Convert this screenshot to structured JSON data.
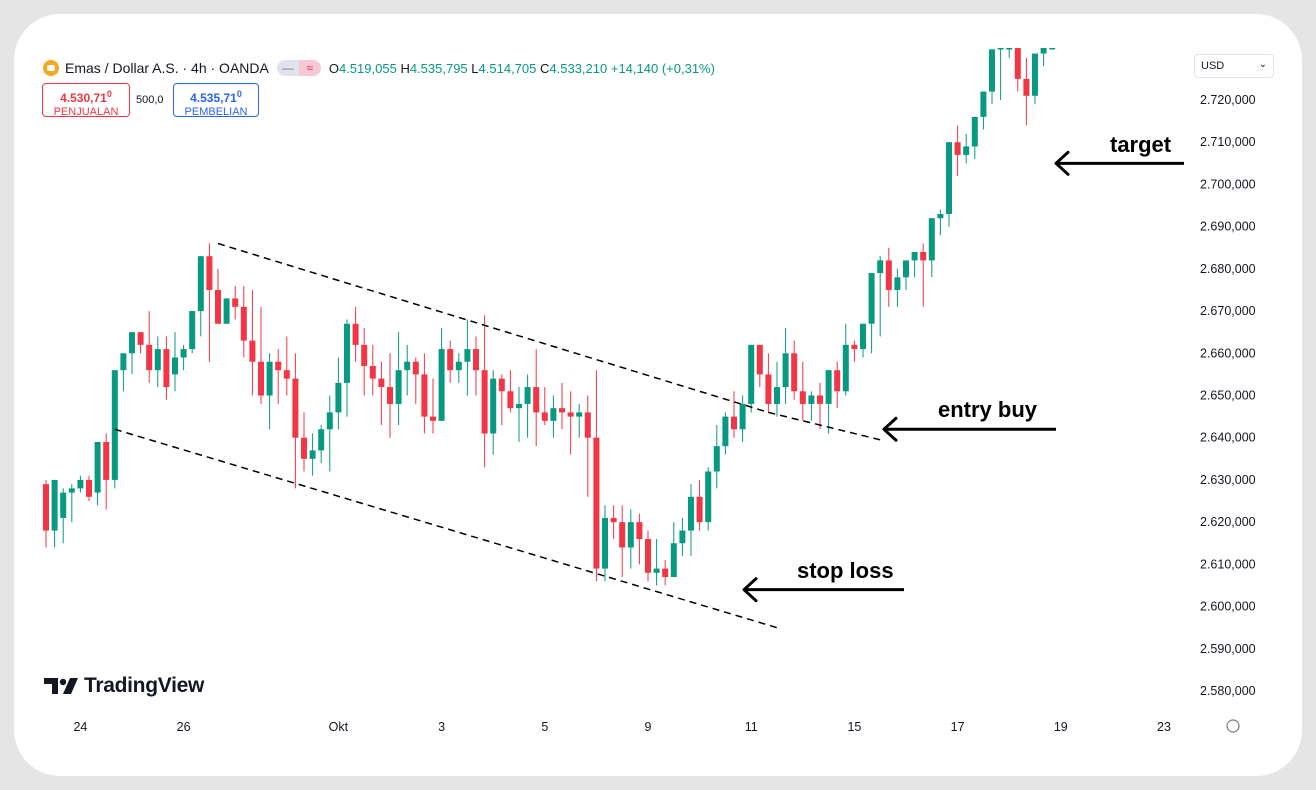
{
  "header": {
    "symbol": "Emas / Dollar A.S. · 4h · OANDA",
    "ohlc": {
      "o_label": "O",
      "o": "4.519,055",
      "h_label": "H",
      "h": "4.535,795",
      "l_label": "L",
      "l": "4.514,705",
      "c_label": "C",
      "c": "4.533,210",
      "change": "+14,140 (+0,31%)"
    },
    "pill_a": "—",
    "pill_b": "≈",
    "sell": {
      "price": "4.530,71",
      "price_sup": "0",
      "label": "PENJUALAN"
    },
    "spread": "500,0",
    "buy": {
      "price": "4.535,71",
      "price_sup": "0",
      "label": "PEMBELIAN"
    },
    "currency": "USD",
    "currency_chevron": "⌄"
  },
  "logo": {
    "text": "TradingView"
  },
  "colors": {
    "up": "#089981",
    "down": "#f23645",
    "grid": "#ffffff",
    "text": "#131722"
  },
  "chart_data": {
    "type": "candlestick",
    "title": "",
    "y_axis": {
      "min": 2572000,
      "max": 2734000,
      "ticks": [
        2720000,
        2710000,
        2700000,
        2690000,
        2680000,
        2670000,
        2660000,
        2650000,
        2640000,
        2630000,
        2620000,
        2610000,
        2600000,
        2590000,
        2580000
      ],
      "tick_labels": [
        "2.720,000",
        "2.710,000",
        "2.700,000",
        "2.690,000",
        "2.680,000",
        "2.670,000",
        "2.660,000",
        "2.650,000",
        "2.640,000",
        "2.630,000",
        "2.620,000",
        "2.610,000",
        "2.600,000",
        "2.590,000",
        "2.580,000"
      ]
    },
    "x_axis": {
      "tick_labels": [
        "24",
        "26",
        "Okt",
        "3",
        "5",
        "9",
        "11",
        "15",
        "17",
        "19",
        "23"
      ],
      "tick_bars": [
        4,
        16,
        34,
        46,
        58,
        70,
        82,
        94,
        106,
        118,
        130
      ]
    },
    "candles": [
      [
        2629,
        2630,
        2614,
        2618
      ],
      [
        2618,
        2630,
        2614,
        2630
      ],
      [
        2621,
        2628,
        2615,
        2627
      ],
      [
        2627,
        2629,
        2620,
        2628
      ],
      [
        2628,
        2631,
        2627,
        2630
      ],
      [
        2630,
        2631,
        2625,
        2626
      ],
      [
        2627,
        2639,
        2624,
        2639
      ],
      [
        2639,
        2641,
        2623,
        2630
      ],
      [
        2630,
        2650,
        2628,
        2656
      ],
      [
        2656,
        2660,
        2651,
        2660
      ],
      [
        2660,
        2662,
        2655,
        2665
      ],
      [
        2665,
        2664,
        2660,
        2662
      ],
      [
        2662,
        2670,
        2653,
        2656
      ],
      [
        2656,
        2664,
        2652,
        2661
      ],
      [
        2661,
        2664,
        2649,
        2652
      ],
      [
        2655,
        2665,
        2651,
        2659
      ],
      [
        2659,
        2662,
        2656,
        2661
      ],
      [
        2661,
        2664,
        2660,
        2670
      ],
      [
        2670,
        2674,
        2664,
        2683
      ],
      [
        2683,
        2686,
        2658,
        2675
      ],
      [
        2675,
        2680,
        2668,
        2667
      ],
      [
        2667,
        2673,
        2670,
        2673
      ],
      [
        2673,
        2676,
        2668,
        2671
      ],
      [
        2671,
        2676,
        2659,
        2663
      ],
      [
        2663,
        2675,
        2650,
        2658
      ],
      [
        2658,
        2671,
        2648,
        2650
      ],
      [
        2650,
        2660,
        2642,
        2658
      ],
      [
        2658,
        2661,
        2648,
        2656
      ],
      [
        2656,
        2664,
        2650,
        2654
      ],
      [
        2654,
        2660,
        2628,
        2640
      ],
      [
        2640,
        2646,
        2632,
        2635
      ],
      [
        2635,
        2641,
        2631,
        2637
      ],
      [
        2637,
        2643,
        2634,
        2642
      ],
      [
        2642,
        2650,
        2632,
        2646
      ],
      [
        2646,
        2659,
        2642,
        2653
      ],
      [
        2653,
        2668,
        2645,
        2667
      ],
      [
        2667,
        2671,
        2658,
        2662
      ],
      [
        2662,
        2666,
        2650,
        2657
      ],
      [
        2657,
        2662,
        2650,
        2654
      ],
      [
        2654,
        2658,
        2643,
        2652
      ],
      [
        2652,
        2660,
        2640,
        2648
      ],
      [
        2648,
        2665,
        2643,
        2656
      ],
      [
        2656,
        2662,
        2650,
        2658
      ],
      [
        2658,
        2659,
        2648,
        2655
      ],
      [
        2655,
        2660,
        2641,
        2645
      ],
      [
        2645,
        2654,
        2641,
        2644
      ],
      [
        2644,
        2666,
        2647,
        2661
      ],
      [
        2661,
        2663,
        2653,
        2656
      ],
      [
        2656,
        2660,
        2653,
        2658
      ],
      [
        2658,
        2668,
        2650,
        2661
      ],
      [
        2661,
        2664,
        2650,
        2656
      ],
      [
        2656,
        2669,
        2633,
        2641
      ],
      [
        2641,
        2656,
        2636,
        2654
      ],
      [
        2654,
        2655,
        2643,
        2651
      ],
      [
        2651,
        2656,
        2646,
        2647
      ],
      [
        2647,
        2652,
        2639,
        2648
      ],
      [
        2648,
        2655,
        2640,
        2652
      ],
      [
        2652,
        2661,
        2638,
        2646
      ],
      [
        2646,
        2652,
        2643,
        2644
      ],
      [
        2644,
        2650,
        2640,
        2647
      ],
      [
        2647,
        2653,
        2642,
        2646
      ],
      [
        2646,
        2651,
        2636,
        2645
      ],
      [
        2645,
        2648,
        2640,
        2646
      ],
      [
        2646,
        2650,
        2626,
        2640
      ],
      [
        2640,
        2656,
        2606,
        2609
      ],
      [
        2609,
        2624,
        2606,
        2621
      ],
      [
        2621,
        2624,
        2616,
        2620
      ],
      [
        2620,
        2624,
        2607,
        2614
      ],
      [
        2614,
        2623,
        2609,
        2620
      ],
      [
        2620,
        2622,
        2610,
        2616
      ],
      [
        2616,
        2618,
        2606,
        2608
      ],
      [
        2608,
        2616,
        2605,
        2609
      ],
      [
        2609,
        2611,
        2605,
        2607
      ],
      [
        2607,
        2620,
        2607,
        2615
      ],
      [
        2615,
        2621,
        2612,
        2618
      ],
      [
        2618,
        2629,
        2612,
        2626
      ],
      [
        2626,
        2630,
        2618,
        2620
      ],
      [
        2620,
        2633,
        2618,
        2632
      ],
      [
        2632,
        2643,
        2628,
        2638
      ],
      [
        2638,
        2646,
        2636,
        2645
      ],
      [
        2645,
        2651,
        2640,
        2642
      ],
      [
        2642,
        2650,
        2639,
        2648
      ],
      [
        2648,
        2661,
        2646,
        2662
      ],
      [
        2662,
        2662,
        2652,
        2655
      ],
      [
        2655,
        2660,
        2646,
        2648
      ],
      [
        2648,
        2658,
        2645,
        2652
      ],
      [
        2652,
        2666,
        2648,
        2660
      ],
      [
        2660,
        2663,
        2649,
        2651
      ],
      [
        2651,
        2658,
        2644,
        2648
      ],
      [
        2648,
        2651,
        2644,
        2650
      ],
      [
        2650,
        2653,
        2642,
        2648
      ],
      [
        2648,
        2656,
        2641,
        2656
      ],
      [
        2656,
        2658,
        2647,
        2651
      ],
      [
        2651,
        2667,
        2650,
        2662
      ],
      [
        2662,
        2663,
        2658,
        2661
      ],
      [
        2661,
        2667,
        2659,
        2667
      ],
      [
        2667,
        2676,
        2660,
        2679
      ],
      [
        2679,
        2683,
        2664,
        2682
      ],
      [
        2682,
        2685,
        2671,
        2675
      ],
      [
        2675,
        2680,
        2671,
        2678
      ],
      [
        2678,
        2681,
        2675,
        2682
      ],
      [
        2682,
        2683,
        2678,
        2684
      ],
      [
        2684,
        2686,
        2671,
        2682
      ],
      [
        2682,
        2689,
        2678,
        2692
      ],
      [
        2692,
        2694,
        2688,
        2693
      ],
      [
        2693,
        2697,
        2690,
        2710
      ],
      [
        2710,
        2714,
        2702,
        2707
      ],
      [
        2707,
        2712,
        2705,
        2709
      ],
      [
        2709,
        2716,
        2706,
        2716
      ],
      [
        2716,
        2722,
        2713,
        2722
      ],
      [
        2722,
        2731,
        2719,
        2732
      ],
      [
        2732,
        2734,
        2720,
        2734
      ],
      [
        2734,
        2734,
        2730,
        2734
      ],
      [
        2734,
        2734,
        2722,
        2725
      ],
      [
        2725,
        2730,
        2714,
        2721
      ],
      [
        2721,
        2730,
        2719,
        2731
      ],
      [
        2731,
        2734,
        2728,
        2734
      ],
      [
        2734,
        2734,
        2732,
        2734
      ]
    ],
    "annotations": [
      {
        "text": "target",
        "arrow_price": 2705000
      },
      {
        "text": "entry buy",
        "arrow_price": 2642000
      },
      {
        "text": "stop loss",
        "arrow_price": 2604000
      }
    ],
    "channel": {
      "upper": [
        [
          2686000
        ],
        [
          2646000
        ]
      ],
      "lower": [
        [
          2642000
        ],
        [
          2596000
        ]
      ]
    }
  }
}
